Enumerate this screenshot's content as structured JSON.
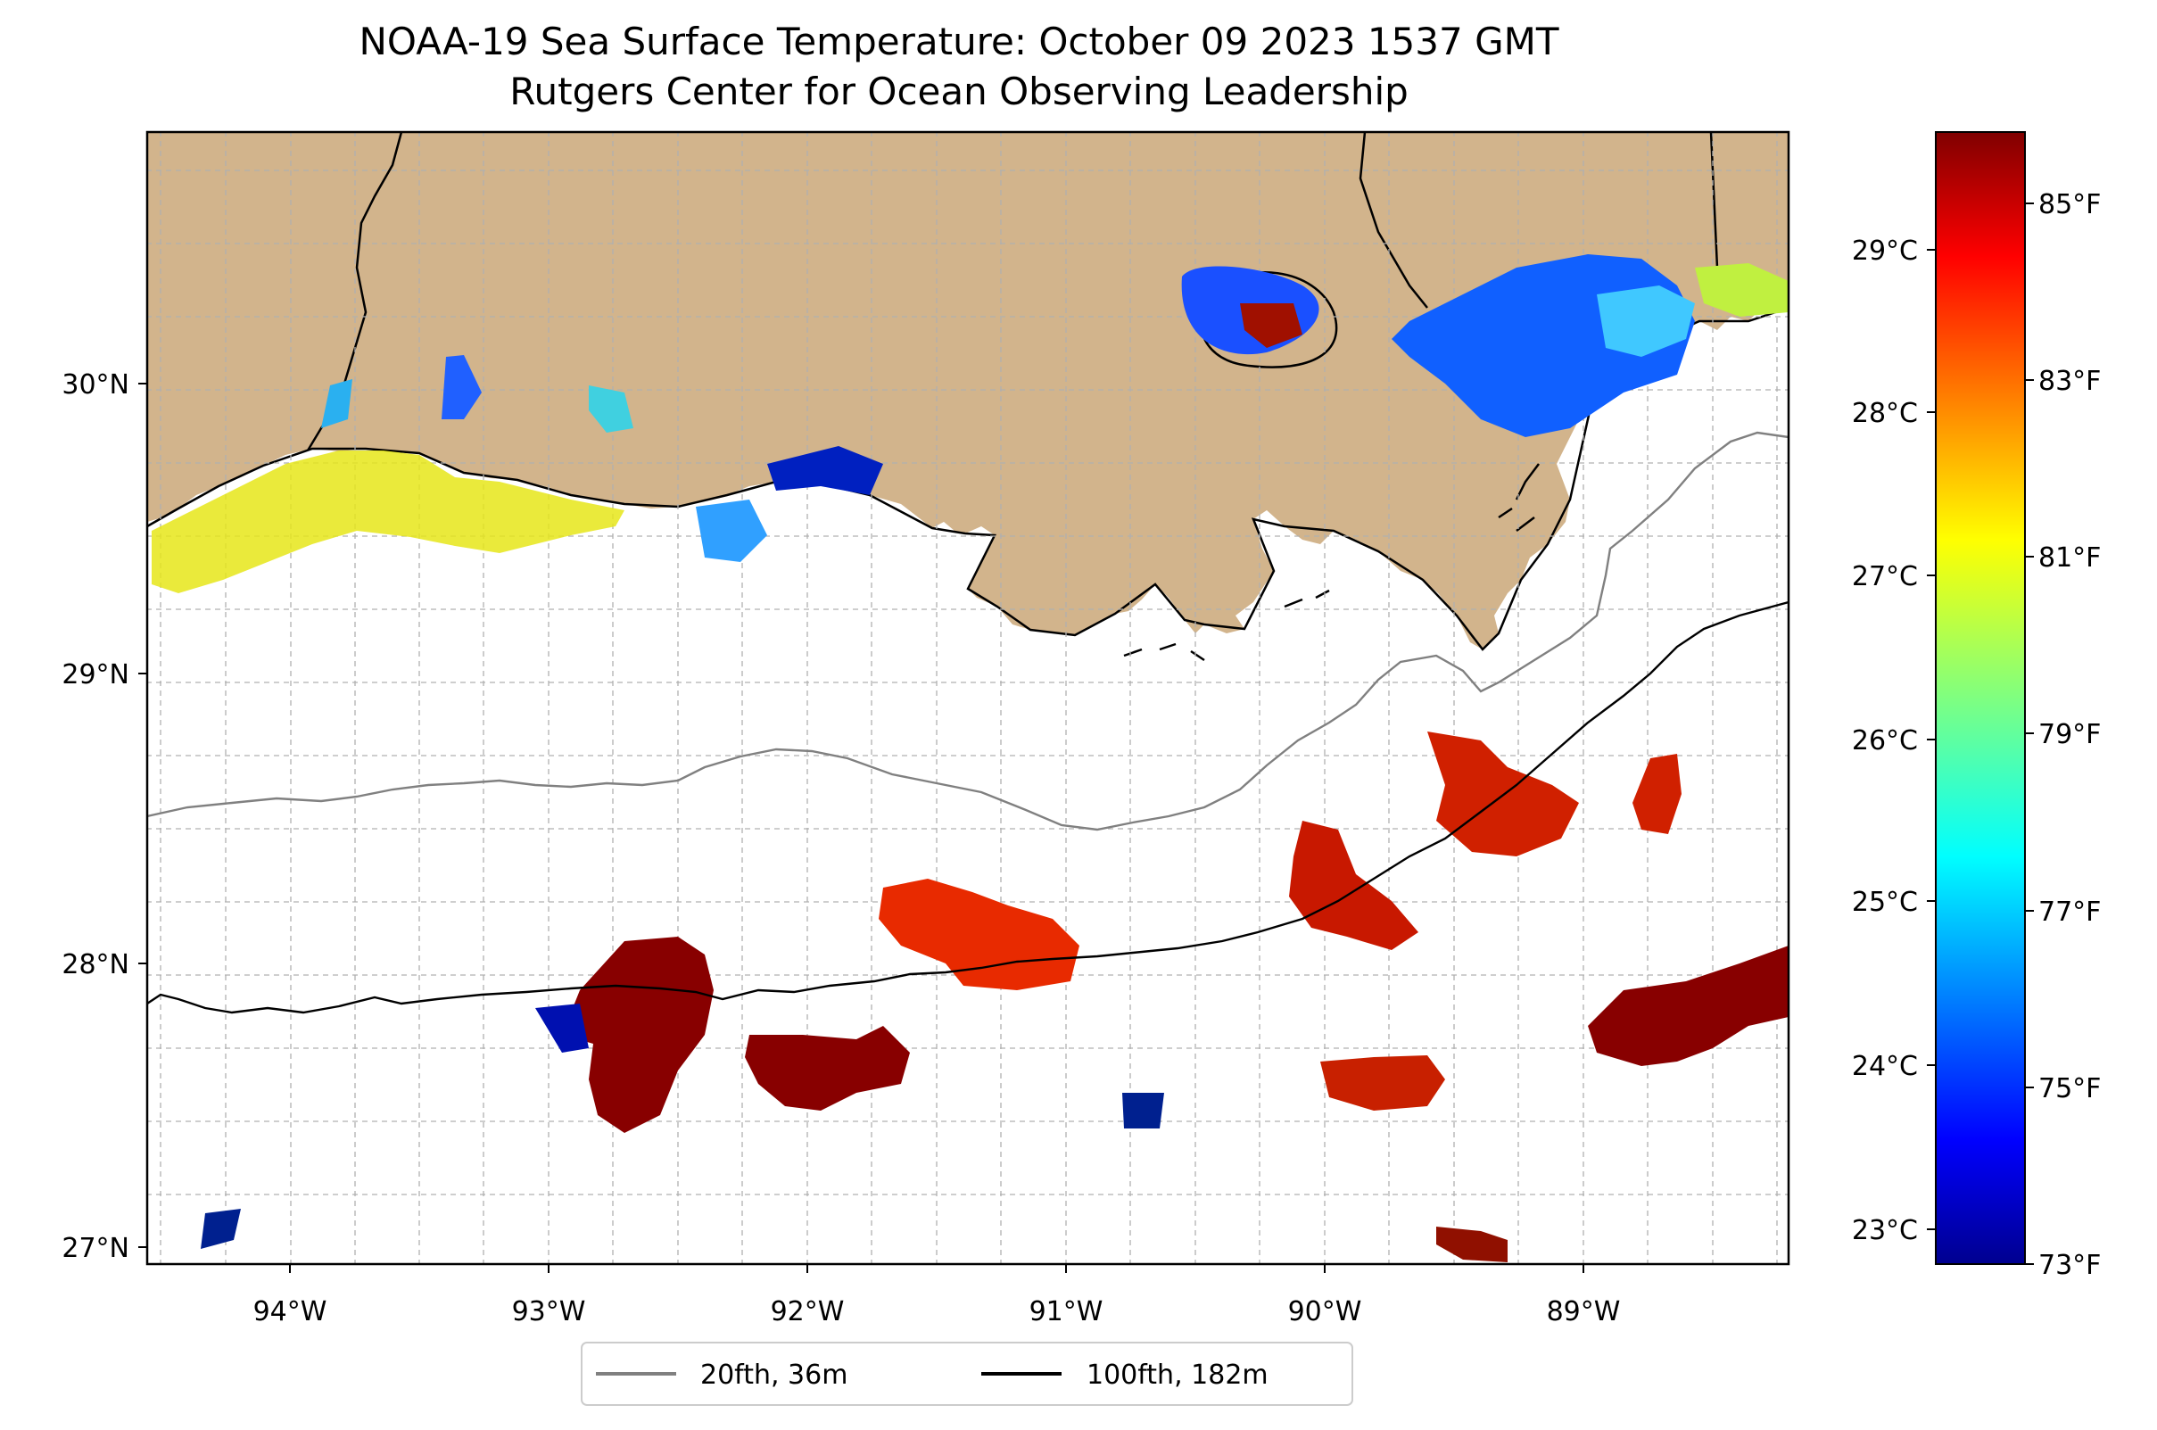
{
  "title": "NOAA-19 Sea Surface Temperature: October 09 2023 1537 GMT",
  "subtitle": "Rutgers Center for Ocean Observing Leadership",
  "map": {
    "lon_range": [
      -94.55,
      -88.2
    ],
    "lat_range": [
      26.93,
      30.85
    ],
    "lon_ticks": [
      "94°W",
      "93°W",
      "92°W",
      "91°W",
      "90°W",
      "89°W"
    ],
    "lat_ticks": [
      "27°N",
      "28°N",
      "29°N",
      "30°N"
    ],
    "land_color": "#d2b48c",
    "grid": true
  },
  "colorbar": {
    "colormap": "jet",
    "range_f": [
      73,
      85.8
    ],
    "fahrenheit_ticks": [
      "73°F",
      "75°F",
      "77°F",
      "79°F",
      "81°F",
      "83°F",
      "85°F"
    ],
    "celsius_ticks": [
      "23°C",
      "24°C",
      "25°C",
      "26°C",
      "27°C",
      "28°C",
      "29°C"
    ]
  },
  "legend": {
    "items": [
      {
        "label": "20fth, 36m",
        "color": "#808080"
      },
      {
        "label": "100fth, 182m",
        "color": "#000000"
      }
    ]
  }
}
